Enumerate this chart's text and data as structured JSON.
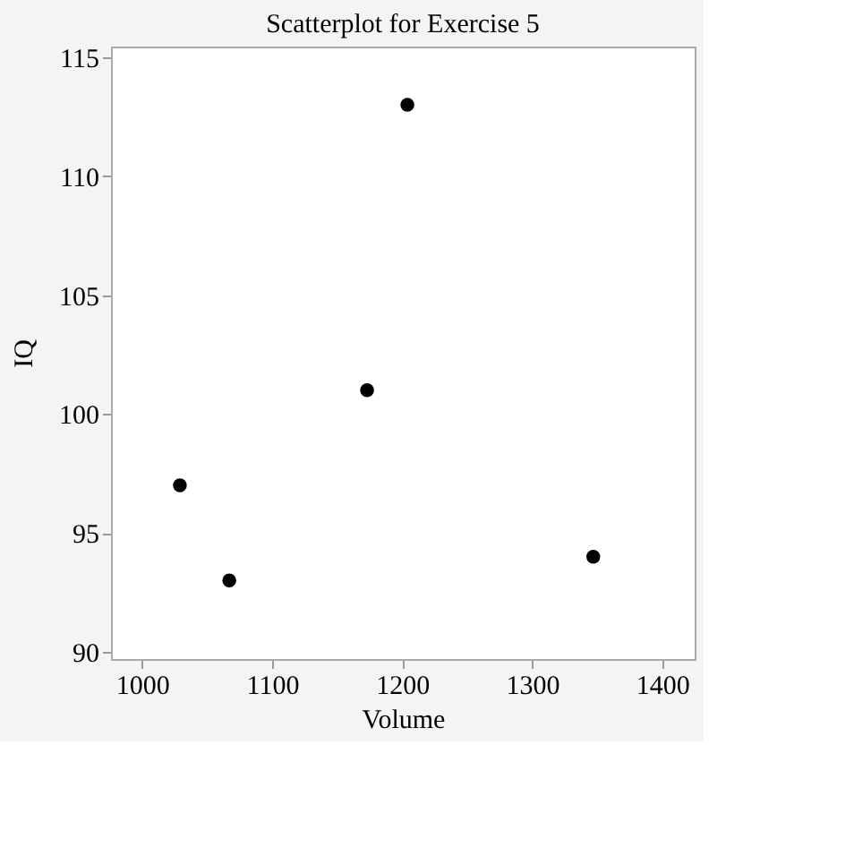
{
  "chart_data": {
    "type": "scatter",
    "title": "Scatterplot for Exercise 5",
    "xlabel": "Volume",
    "ylabel": "IQ",
    "x": [
      1029,
      1067,
      1173,
      1204,
      1347
    ],
    "series": [
      {
        "color": "#000000",
        "values": [
          97,
          93,
          101,
          113,
          94
        ]
      }
    ],
    "xlim": [
      976,
      1425
    ],
    "xticks": [
      1000,
      1100,
      1200,
      1300,
      1400
    ],
    "ylim": [
      89.7,
      115.45
    ],
    "yticks": [
      90,
      95,
      100,
      105,
      110,
      115
    ],
    "grid": false,
    "legend": false,
    "marker": "circle"
  }
}
